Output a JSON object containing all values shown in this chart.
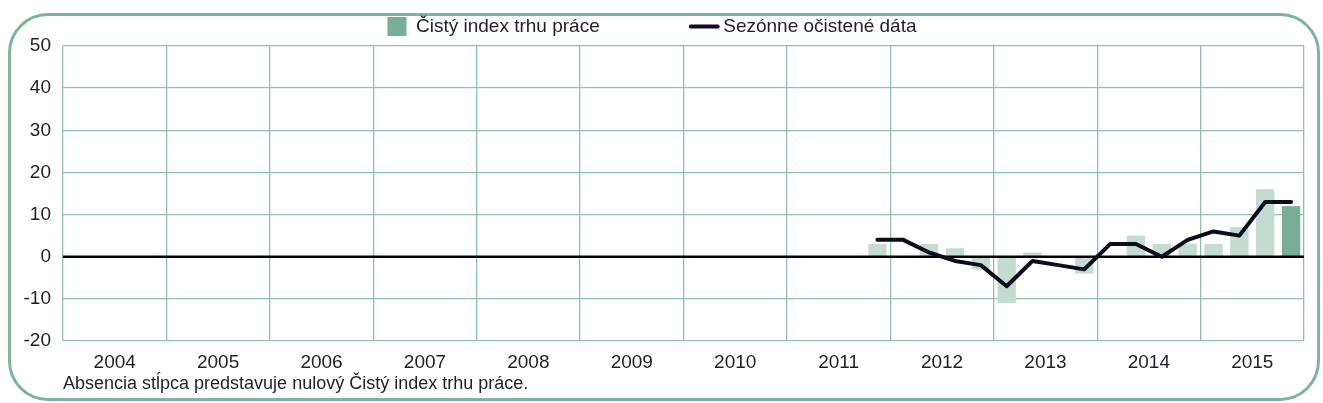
{
  "chart_data": {
    "type": "bar",
    "x": [
      2011.875,
      2012.125,
      2012.375,
      2012.625,
      2012.875,
      2013.125,
      2013.375,
      2013.625,
      2013.875,
      2014.125,
      2014.375,
      2014.625,
      2014.875,
      2015.125,
      2015.375,
      2015.625,
      2015.875
    ],
    "series": [
      {
        "name": "Čistý index trhu práce",
        "color": "#78ae98",
        "colors": [
          "#c3dbd1",
          "#c3dbd1",
          "#c3dbd1",
          "#c3dbd1",
          "#c3dbd1",
          "#c3dbd1",
          "#c3dbd1",
          "#c3dbd1",
          "#c3dbd1",
          "#c3dbd1",
          "#c3dbd1",
          "#c3dbd1",
          "#c3dbd1",
          "#c3dbd1",
          "#c3dbd1",
          "#c3dbd1",
          "#78ae98"
        ],
        "values": [
          3,
          0,
          3,
          2,
          -3,
          -11,
          1,
          0,
          -4,
          0,
          5,
          3,
          3,
          3,
          7,
          16,
          12
        ]
      },
      {
        "name": "Sezónne očistené dáta",
        "type": "line",
        "color": "#0b0c1f",
        "values": [
          4,
          4,
          1,
          -1,
          -2,
          -7,
          -1,
          -2,
          -3,
          3,
          3,
          0,
          4,
          6,
          5,
          13,
          13
        ]
      }
    ],
    "xlim": [
      2004,
      2016
    ],
    "xticks": [
      {
        "value": 2004,
        "label": null
      },
      {
        "value": 2004.5,
        "label": "2004"
      },
      {
        "value": 2005,
        "label": null
      },
      {
        "value": 2005.5,
        "label": "2005"
      },
      {
        "value": 2006,
        "label": null
      },
      {
        "value": 2006.5,
        "label": "2006"
      },
      {
        "value": 2007,
        "label": null
      },
      {
        "value": 2007.5,
        "label": "2007"
      },
      {
        "value": 2008,
        "label": null
      },
      {
        "value": 2008.5,
        "label": "2008"
      },
      {
        "value": 2009,
        "label": null
      },
      {
        "value": 2009.5,
        "label": "2009"
      },
      {
        "value": 2010,
        "label": null
      },
      {
        "value": 2010.5,
        "label": "2010"
      },
      {
        "value": 2011,
        "label": null
      },
      {
        "value": 2011.5,
        "label": "2011"
      },
      {
        "value": 2012,
        "label": null
      },
      {
        "value": 2012.5,
        "label": "2012"
      },
      {
        "value": 2013,
        "label": null
      },
      {
        "value": 2013.5,
        "label": "2013"
      },
      {
        "value": 2014,
        "label": null
      },
      {
        "value": 2014.5,
        "label": "2014"
      },
      {
        "value": 2015,
        "label": null
      },
      {
        "value": 2015.5,
        "label": "2015"
      },
      {
        "value": 2016,
        "label": null
      }
    ],
    "ylim": [
      -20,
      50
    ],
    "yticks": [
      -20,
      -10,
      0,
      10,
      20,
      30,
      40,
      50
    ],
    "grid": true,
    "legend": "top",
    "ref_lines": [
      {
        "axis": "y",
        "value": 0,
        "color": "#000000"
      }
    ],
    "annotations": [
      "Absencia stĺpca predstavuje nulový Čistý index trhu práce."
    ]
  }
}
